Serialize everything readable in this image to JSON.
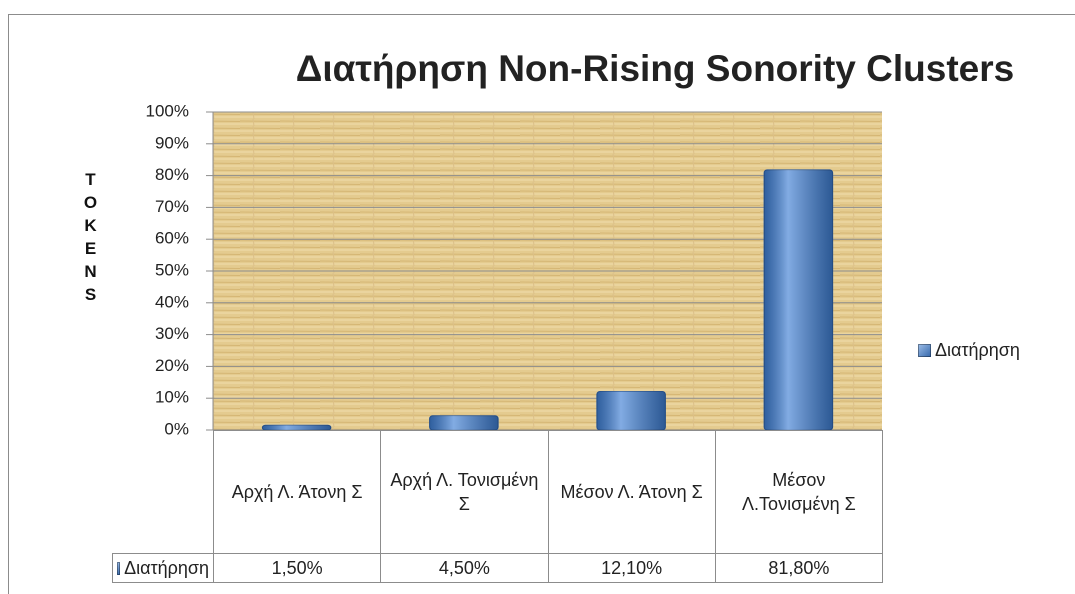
{
  "chart_data": {
    "type": "bar",
    "title": "Διατήρηση Non-Rising Sonority Clusters",
    "y_label": "TOKENS",
    "categories": [
      "Αρχή Λ. Άτονη Σ",
      "Αρχή Λ. Τονισμένη Σ",
      "Μέσον Λ. Άτονη Σ",
      "Μέσον Λ.Τονισμένη Σ"
    ],
    "series": [
      {
        "name": "Διατήρηση",
        "color": "#3f7fd4",
        "values": [
          1.5,
          4.5,
          12.1,
          81.8
        ],
        "value_labels": [
          "1,50%",
          "4,50%",
          "12,10%",
          "81,80%"
        ]
      }
    ],
    "ylim": [
      0,
      100
    ],
    "yticks": [
      {
        "value": 0,
        "label": "0%"
      },
      {
        "value": 10,
        "label": "10%"
      },
      {
        "value": 20,
        "label": "20%"
      },
      {
        "value": 30,
        "label": "30%"
      },
      {
        "value": 40,
        "label": "40%"
      },
      {
        "value": 50,
        "label": "50%"
      },
      {
        "value": 60,
        "label": "60%"
      },
      {
        "value": 70,
        "label": "70%"
      },
      {
        "value": 80,
        "label": "80%"
      },
      {
        "value": 90,
        "label": "90%"
      },
      {
        "value": 100,
        "label": "100%"
      }
    ],
    "grid": true,
    "legend": "right"
  }
}
